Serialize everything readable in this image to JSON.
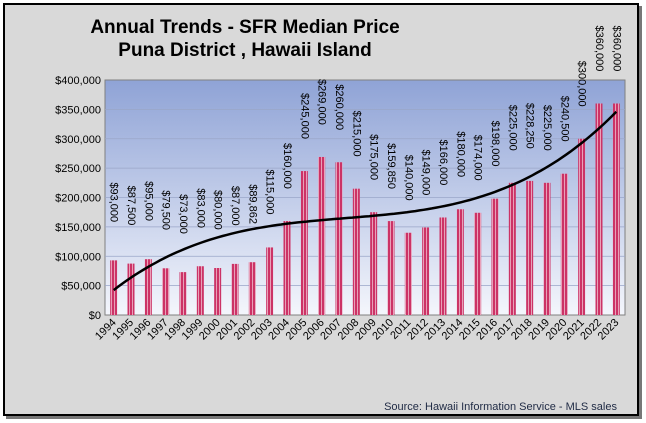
{
  "title_line1": "Annual Trends - SFR Median Price",
  "title_line2": "Puna District , Hawaii Island",
  "source": "Source:  Hawaii Information Service - MLS sales",
  "colors": {
    "bar": "#cc3366",
    "bar_stripe": "#e8a0b8",
    "trend": "#000000",
    "plot_top": "#8fa3d6",
    "plot_bottom": "#f4f6fc",
    "frame": "#d9d9d9"
  },
  "chart_data": {
    "type": "bar",
    "categories": [
      "1994",
      "1995",
      "1996",
      "1997",
      "1998",
      "1999",
      "2000",
      "2001",
      "2002",
      "2003",
      "2004",
      "2005",
      "2006",
      "2007",
      "2008",
      "2009",
      "2010",
      "2011",
      "2012",
      "2013",
      "2014",
      "2015",
      "2016",
      "2017",
      "2018",
      "2019",
      "2020",
      "2021",
      "2022",
      "2023"
    ],
    "values": [
      93000,
      87500,
      95000,
      79500,
      73000,
      83000,
      80000,
      87000,
      89862,
      115000,
      160000,
      245000,
      269000,
      260000,
      215000,
      175000,
      159850,
      140000,
      149000,
      166000,
      180000,
      174000,
      198000,
      225000,
      228250,
      225000,
      240500,
      300000,
      360000,
      360000
    ],
    "data_labels": [
      "$93,000",
      "$87,500",
      "$95,000",
      "$79,500",
      "$73,000",
      "$83,000",
      "$80,000",
      "$87,000",
      "$89,862",
      "$115,000",
      "$160,000",
      "$245,000",
      "$269,000",
      "$260,000",
      "$215,000",
      "$175,000",
      "$159,850",
      "$140,000",
      "$149,000",
      "$166,000",
      "$180,000",
      "$174,000",
      "$198,000",
      "$225,000",
      "$228,250",
      "$225,000",
      "$240,500",
      "$300,000",
      "$360,000",
      "$360,000"
    ],
    "trendline": {
      "type": "polynomial",
      "degree": 3
    },
    "yticks": [
      "$0",
      "$50,000",
      "$100,000",
      "$150,000",
      "$200,000",
      "$250,000",
      "$300,000",
      "$350,000",
      "$400,000"
    ],
    "ylim": [
      0,
      400000
    ],
    "grid": true,
    "legend": false
  }
}
